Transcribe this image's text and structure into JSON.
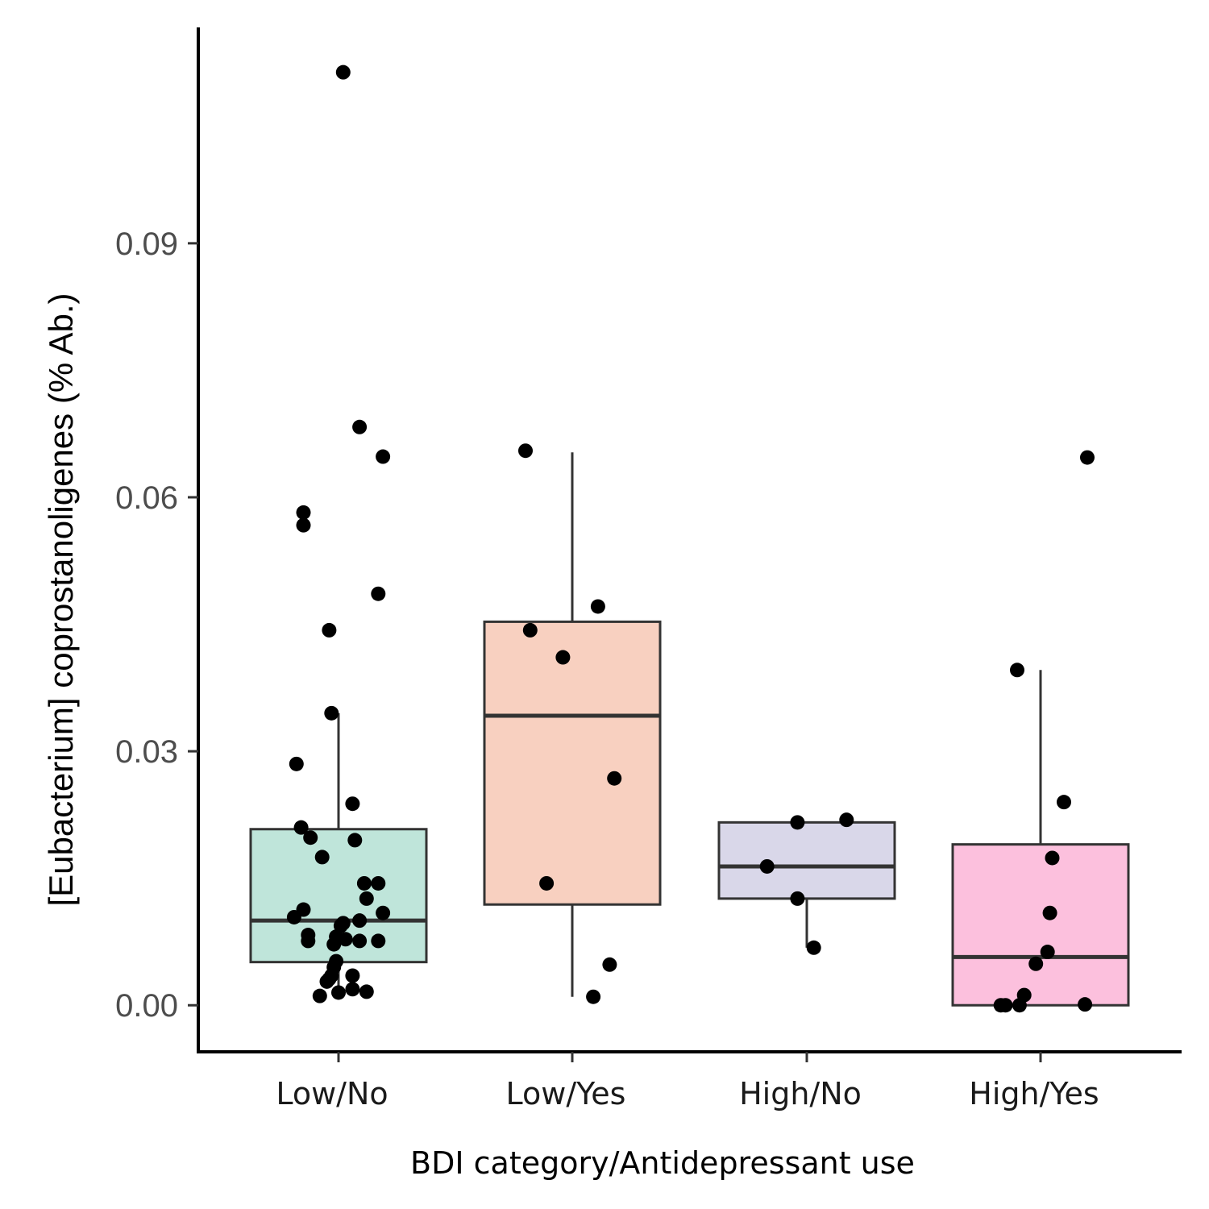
{
  "chart_data": {
    "type": "box",
    "xlabel": "BDI category/Antidepressant use",
    "ylabel_italic": "[Eubacterium]",
    "ylabel_rest": " coprostanoligenes (% Ab.)",
    "ylim": [
      -0.0055,
      0.1155
    ],
    "yticks": [
      "0.00",
      "0.03",
      "0.06",
      "0.09"
    ],
    "ytick_values": [
      0.0,
      0.03,
      0.06,
      0.09
    ],
    "categories": [
      "Low/No",
      "Low/Yes",
      "High/No",
      "High/Yes"
    ],
    "grid": false,
    "legend": "none",
    "boxes": [
      {
        "category": "Low/No",
        "fill": "#bfe5da",
        "q1": 0.0051,
        "median": 0.01,
        "q3": 0.0208,
        "whisker_low": 0.0011,
        "whisker_high": 0.0345
      },
      {
        "category": "Low/Yes",
        "fill": "#f8d0c0",
        "q1": 0.0119,
        "median": 0.0342,
        "q3": 0.0453,
        "whisker_low": 0.001,
        "whisker_high": 0.0653
      },
      {
        "category": "High/No",
        "fill": "#d9d7e9",
        "q1": 0.0126,
        "median": 0.0164,
        "q3": 0.0216,
        "whisker_low": 0.0068,
        "whisker_high": 0.0216
      },
      {
        "category": "High/Yes",
        "fill": "#fcc0dd",
        "q1": 0.0,
        "median": 0.0057,
        "q3": 0.019,
        "whisker_low": 0.0,
        "whisker_high": 0.0396
      }
    ],
    "points": [
      {
        "category": "Low/No",
        "dx": 0.02,
        "y": 0.1102
      },
      {
        "category": "Low/No",
        "dx": 0.09,
        "y": 0.0683
      },
      {
        "category": "Low/No",
        "dx": 0.19,
        "y": 0.0648
      },
      {
        "category": "Low/No",
        "dx": -0.15,
        "y": 0.0582
      },
      {
        "category": "Low/No",
        "dx": -0.15,
        "y": 0.0567
      },
      {
        "category": "Low/No",
        "dx": 0.17,
        "y": 0.0486
      },
      {
        "category": "Low/No",
        "dx": -0.04,
        "y": 0.0443
      },
      {
        "category": "Low/No",
        "dx": -0.03,
        "y": 0.0345
      },
      {
        "category": "Low/No",
        "dx": -0.18,
        "y": 0.0285
      },
      {
        "category": "Low/No",
        "dx": 0.06,
        "y": 0.0238
      },
      {
        "category": "Low/No",
        "dx": -0.16,
        "y": 0.021
      },
      {
        "category": "Low/No",
        "dx": -0.12,
        "y": 0.0198
      },
      {
        "category": "Low/No",
        "dx": 0.07,
        "y": 0.0195
      },
      {
        "category": "Low/No",
        "dx": -0.07,
        "y": 0.0175
      },
      {
        "category": "Low/No",
        "dx": 0.11,
        "y": 0.0144
      },
      {
        "category": "Low/No",
        "dx": 0.17,
        "y": 0.0144
      },
      {
        "category": "Low/No",
        "dx": 0.12,
        "y": 0.0126
      },
      {
        "category": "Low/No",
        "dx": -0.15,
        "y": 0.0113
      },
      {
        "category": "Low/No",
        "dx": 0.19,
        "y": 0.0109
      },
      {
        "category": "Low/No",
        "dx": -0.19,
        "y": 0.0104
      },
      {
        "category": "Low/No",
        "dx": 0.09,
        "y": 0.01
      },
      {
        "category": "Low/No",
        "dx": 0.02,
        "y": 0.0097
      },
      {
        "category": "Low/No",
        "dx": 0.01,
        "y": 0.0094
      },
      {
        "category": "Low/No",
        "dx": -0.13,
        "y": 0.0083
      },
      {
        "category": "Low/No",
        "dx": -0.01,
        "y": 0.0081
      },
      {
        "category": "Low/No",
        "dx": 0.03,
        "y": 0.0078
      },
      {
        "category": "Low/No",
        "dx": -0.13,
        "y": 0.0076
      },
      {
        "category": "Low/No",
        "dx": 0.09,
        "y": 0.0076
      },
      {
        "category": "Low/No",
        "dx": 0.17,
        "y": 0.0076
      },
      {
        "category": "Low/No",
        "dx": -0.02,
        "y": 0.0072
      },
      {
        "category": "Low/No",
        "dx": -0.01,
        "y": 0.0052
      },
      {
        "category": "Low/No",
        "dx": -0.02,
        "y": 0.0045
      },
      {
        "category": "Low/No",
        "dx": -0.03,
        "y": 0.0035
      },
      {
        "category": "Low/No",
        "dx": 0.06,
        "y": 0.0035
      },
      {
        "category": "Low/No",
        "dx": -0.04,
        "y": 0.0031
      },
      {
        "category": "Low/No",
        "dx": -0.05,
        "y": 0.0028
      },
      {
        "category": "Low/No",
        "dx": 0.06,
        "y": 0.0019
      },
      {
        "category": "Low/No",
        "dx": 0.12,
        "y": 0.0016
      },
      {
        "category": "Low/No",
        "dx": 0.0,
        "y": 0.0015
      },
      {
        "category": "Low/No",
        "dx": -0.08,
        "y": 0.0011
      },
      {
        "category": "Low/Yes",
        "dx": -0.2,
        "y": 0.0655
      },
      {
        "category": "Low/Yes",
        "dx": 0.11,
        "y": 0.0471
      },
      {
        "category": "Low/Yes",
        "dx": -0.18,
        "y": 0.0443
      },
      {
        "category": "Low/Yes",
        "dx": -0.04,
        "y": 0.0411
      },
      {
        "category": "Low/Yes",
        "dx": 0.18,
        "y": 0.0268
      },
      {
        "category": "Low/Yes",
        "dx": -0.11,
        "y": 0.0144
      },
      {
        "category": "Low/Yes",
        "dx": 0.16,
        "y": 0.0048
      },
      {
        "category": "Low/Yes",
        "dx": 0.09,
        "y": 0.001
      },
      {
        "category": "High/No",
        "dx": 0.17,
        "y": 0.0219
      },
      {
        "category": "High/No",
        "dx": -0.04,
        "y": 0.0216
      },
      {
        "category": "High/No",
        "dx": -0.17,
        "y": 0.0164
      },
      {
        "category": "High/No",
        "dx": -0.04,
        "y": 0.0126
      },
      {
        "category": "High/No",
        "dx": 0.03,
        "y": 0.0068
      },
      {
        "category": "High/Yes",
        "dx": 0.2,
        "y": 0.0647
      },
      {
        "category": "High/Yes",
        "dx": -0.1,
        "y": 0.0396
      },
      {
        "category": "High/Yes",
        "dx": 0.1,
        "y": 0.024
      },
      {
        "category": "High/Yes",
        "dx": 0.05,
        "y": 0.0174
      },
      {
        "category": "High/Yes",
        "dx": 0.04,
        "y": 0.0109
      },
      {
        "category": "High/Yes",
        "dx": 0.03,
        "y": 0.0063
      },
      {
        "category": "High/Yes",
        "dx": -0.02,
        "y": 0.0049
      },
      {
        "category": "High/Yes",
        "dx": -0.07,
        "y": 0.0012
      },
      {
        "category": "High/Yes",
        "dx": -0.17,
        "y": 0.0
      },
      {
        "category": "High/Yes",
        "dx": -0.15,
        "y": 0.0
      },
      {
        "category": "High/Yes",
        "dx": -0.09,
        "y": 0.0
      },
      {
        "category": "High/Yes",
        "dx": 0.19,
        "y": 0.0001
      }
    ]
  }
}
